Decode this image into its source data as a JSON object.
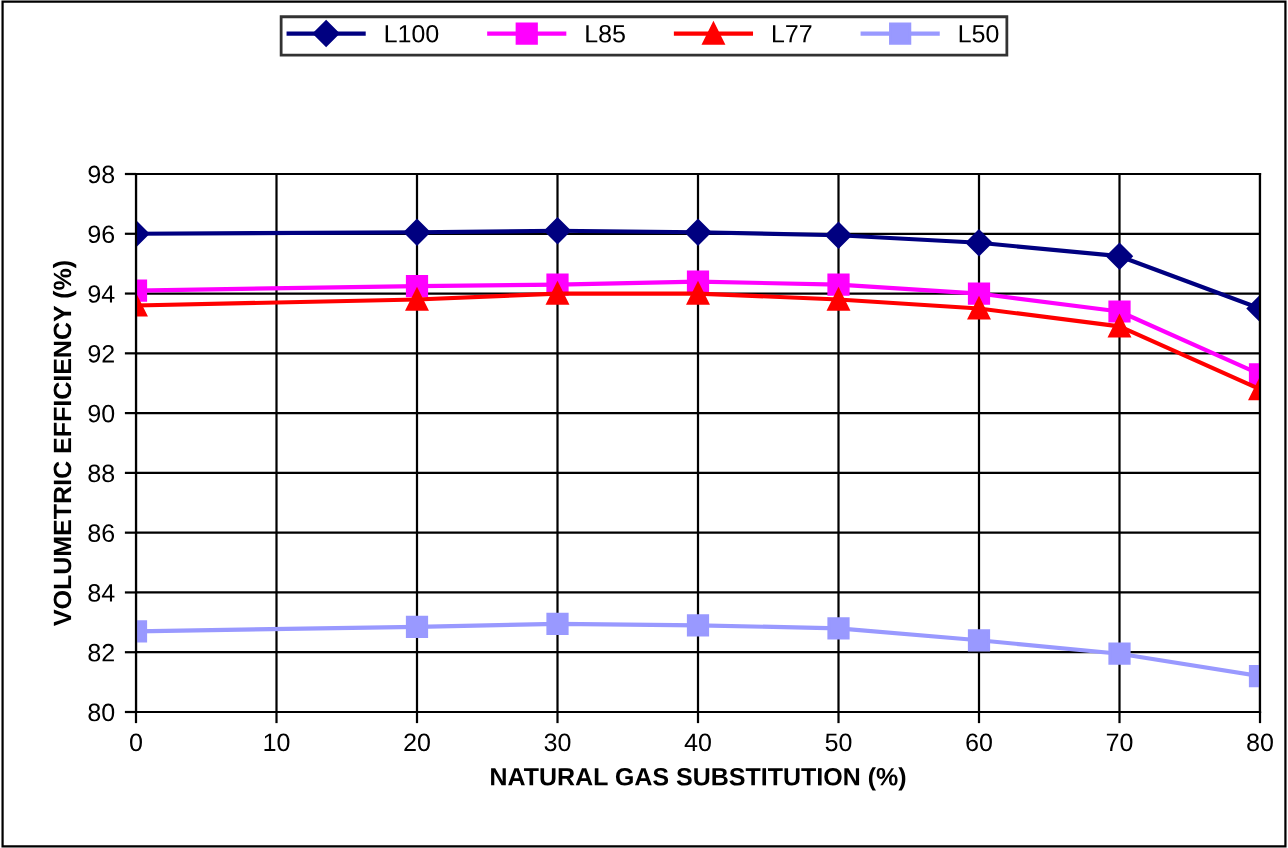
{
  "chart_data": {
    "type": "line",
    "xlabel": "NATURAL GAS SUBSTITUTION (%)",
    "ylabel": "VOLUMETRIC EFFICIENCY (%)",
    "x": [
      0,
      20,
      30,
      40,
      50,
      60,
      70,
      80
    ],
    "series": [
      {
        "name": "L100",
        "color": "#000080",
        "marker": "diamond",
        "values": [
          96.0,
          96.05,
          96.1,
          96.05,
          95.95,
          95.7,
          95.25,
          93.5
        ]
      },
      {
        "name": "L85",
        "color": "#ff00ff",
        "marker": "square",
        "values": [
          94.1,
          94.25,
          94.3,
          94.4,
          94.3,
          94.0,
          93.4,
          91.3
        ]
      },
      {
        "name": "L77",
        "color": "#ff0000",
        "marker": "triangle",
        "values": [
          93.6,
          93.8,
          94.0,
          94.0,
          93.8,
          93.5,
          92.9,
          90.8
        ]
      },
      {
        "name": "L50",
        "color": "#9999ff",
        "marker": "square",
        "values": [
          82.7,
          82.85,
          82.95,
          82.9,
          82.8,
          82.4,
          81.95,
          81.2
        ]
      }
    ],
    "xlim": [
      0,
      80
    ],
    "xticks": [
      0,
      10,
      20,
      30,
      40,
      50,
      60,
      70,
      80
    ],
    "ylim": [
      80,
      98
    ],
    "yticks": [
      80,
      82,
      84,
      86,
      88,
      90,
      92,
      94,
      96,
      98
    ],
    "grid": true,
    "legend": "top",
    "line_style": "solid"
  }
}
